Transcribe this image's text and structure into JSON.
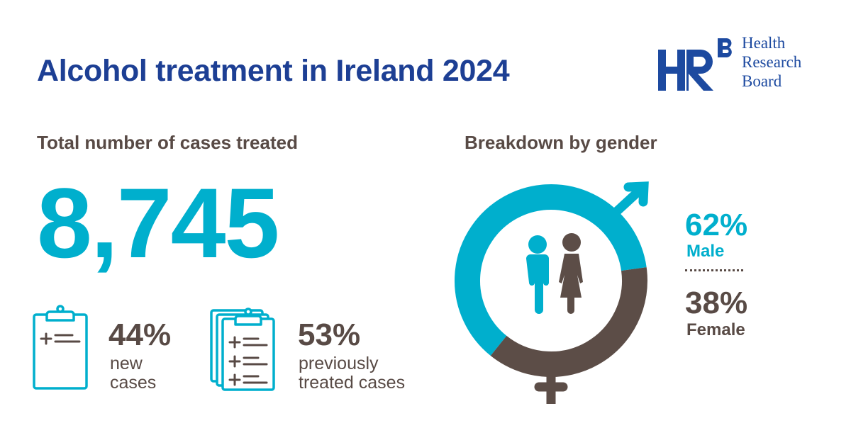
{
  "header": {
    "title": "Alcohol treatment in Ireland 2024",
    "logo": {
      "mark": "HRB",
      "lines": [
        "Health",
        "Research",
        "Board"
      ]
    }
  },
  "total_section": {
    "heading": "Total number of cases treated",
    "total": "8,745",
    "stats": [
      {
        "icon": "clipboard-icon",
        "percent": "44%",
        "label_lines": [
          "new",
          "cases"
        ]
      },
      {
        "icon": "clipboard-stack-icon",
        "percent": "53%",
        "label_lines": [
          "previously",
          "treated cases"
        ]
      }
    ]
  },
  "gender_section": {
    "heading": "Breakdown by gender",
    "male": {
      "percent": "62%",
      "label": "Male"
    },
    "female": {
      "percent": "38%",
      "label": "Female"
    }
  },
  "colors": {
    "accent": "#00afcd",
    "brown": "#5c4d47",
    "navy": "#1d3f94"
  },
  "chart_data": {
    "type": "pie",
    "title": "Breakdown by gender",
    "categories": [
      "Male",
      "Female"
    ],
    "values": [
      62,
      38
    ],
    "unit": "%"
  }
}
